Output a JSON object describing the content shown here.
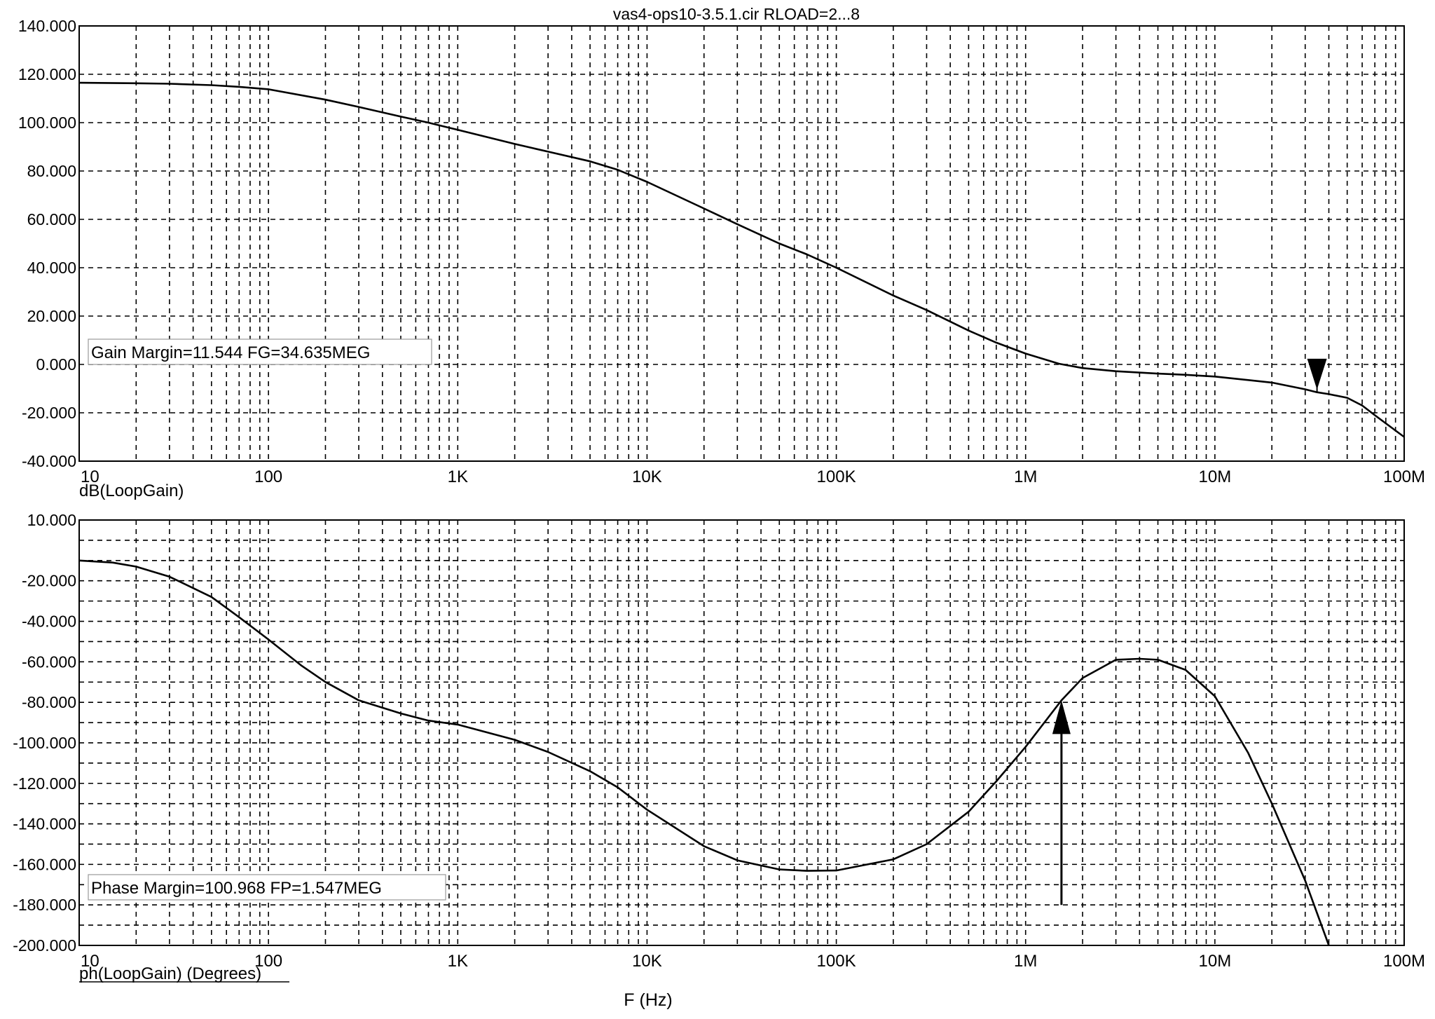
{
  "title": "vas4-ops10-3.5.1.cir RLOAD=2...8",
  "xlabel": "F (Hz)",
  "x_ticks": [
    "10",
    "100",
    "1K",
    "10K",
    "100K",
    "1M",
    "10M",
    "100M"
  ],
  "chart_data": [
    {
      "type": "line",
      "ylabel": "dB(LoopGain)",
      "x_scale": "log",
      "xlim": [
        10,
        100000000
      ],
      "ylim": [
        -40,
        140
      ],
      "y_ticks": [
        "140.000",
        "120.000",
        "100.000",
        "80.000",
        "60.000",
        "40.000",
        "20.000",
        "0.000",
        "-20.000",
        "-40.000"
      ],
      "grid": true,
      "annotation": "Gain Margin=11.544 FG=34.635MEG",
      "marker": {
        "type": "down-arrow",
        "x": 34635000,
        "y": -11.544
      },
      "series": [
        {
          "x": [
            10,
            20,
            30,
            50,
            70,
            100,
            200,
            300,
            500,
            700,
            1000,
            2000,
            3000,
            5000,
            7000,
            10000,
            20000,
            30000,
            50000,
            70000,
            100000,
            200000,
            300000,
            500000,
            700000,
            1000000,
            1500000,
            2000000,
            3000000,
            5000000,
            7000000,
            10000000,
            20000000,
            30000000,
            34635000,
            40000000,
            50000000,
            60000000,
            70000000,
            100000000
          ],
          "y": [
            116.5,
            116.3,
            116.1,
            115.5,
            114.8,
            113.8,
            109.5,
            106.5,
            102.5,
            100,
            97,
            91.2,
            88,
            84,
            80.5,
            75.5,
            64.5,
            58,
            50,
            45.5,
            40,
            28.5,
            22.5,
            14,
            9,
            4.5,
            0.3,
            -1.5,
            -2.8,
            -3.8,
            -4.3,
            -5,
            -7.5,
            -10.3,
            -11.5,
            -12.3,
            -13.8,
            -17,
            -21,
            -30
          ]
        }
      ]
    },
    {
      "type": "line",
      "ylabel": "ph(LoopGain) (Degrees)",
      "x_scale": "log",
      "xlim": [
        10,
        100000000
      ],
      "ylim": [
        -200,
        10
      ],
      "y_ticks": [
        "10.000",
        "-20.000",
        "-40.000",
        "-60.000",
        "-80.000",
        "-100.000",
        "-120.000",
        "-140.000",
        "-160.000",
        "-180.000",
        "-200.000"
      ],
      "grid": true,
      "annotation": "Phase Margin=100.968 FP=1.547MEG",
      "marker": {
        "type": "up-arrow",
        "x": 1547000,
        "y_from": -180,
        "y_to": -79.032
      },
      "series": [
        {
          "x": [
            10,
            15,
            20,
            30,
            50,
            70,
            100,
            150,
            200,
            300,
            500,
            700,
            1000,
            2000,
            3000,
            5000,
            7000,
            10000,
            20000,
            30000,
            50000,
            70000,
            100000,
            200000,
            300000,
            500000,
            700000,
            1000000,
            1547000,
            2000000,
            3000000,
            4000000,
            5000000,
            7000000,
            10000000,
            15000000,
            20000000,
            30000000,
            40000000
          ],
          "y": [
            -10,
            -11,
            -13,
            -18,
            -28,
            -38,
            -49,
            -62,
            -70,
            -79,
            -85.5,
            -89,
            -91,
            -98.5,
            -104.5,
            -114,
            -122,
            -133,
            -151,
            -158,
            -162.5,
            -163.2,
            -163,
            -157.5,
            -150,
            -134,
            -119,
            -102,
            -79.032,
            -68,
            -59,
            -58.5,
            -59,
            -64,
            -77,
            -105,
            -130,
            -168,
            -200
          ]
        }
      ]
    }
  ]
}
